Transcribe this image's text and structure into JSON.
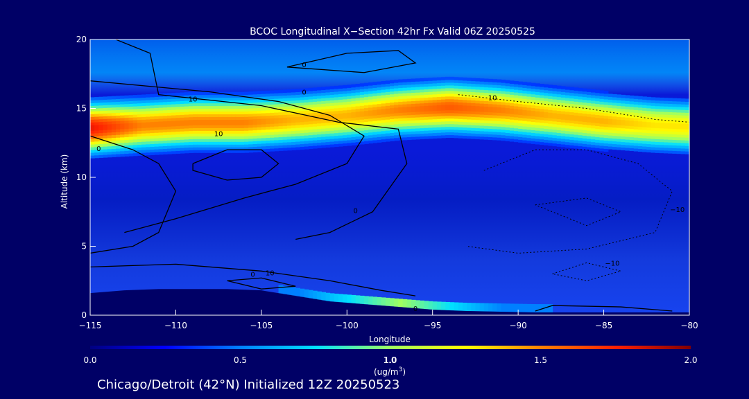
{
  "chart_data": {
    "type": "heatmap",
    "title": "BCOC Longitudinal X−Section 42hr  Fx Valid 06Z 20250525",
    "xlabel": "Longitude",
    "ylabel": "Altitude (km)",
    "xlim": [
      -115,
      -80
    ],
    "ylim": [
      0,
      20
    ],
    "x_ticks": [
      -115,
      -110,
      -105,
      -100,
      -95,
      -90,
      -85,
      -80
    ],
    "x_tick_labels": [
      "−115",
      "−110",
      "−105",
      "−100",
      "−95",
      "−90",
      "−85",
      "−80"
    ],
    "y_ticks": [
      0,
      5,
      10,
      15,
      20
    ],
    "y_tick_labels": [
      "0",
      "5",
      "10",
      "15",
      "20"
    ],
    "colorbar": {
      "label_prefix": "(ug/m",
      "label_sup": "3",
      "label_suffix": ")",
      "label_value": "1.0",
      "range": [
        0.0,
        2.0
      ],
      "ticks": [
        0.0,
        0.5,
        1.0,
        1.5,
        2.0
      ],
      "tick_labels": [
        "0.0",
        "0.5",
        "1.0",
        "1.5",
        "2.0"
      ],
      "colors": [
        "#000080",
        "#0000ff",
        "#0080ff",
        "#00e0ff",
        "#a0ff60",
        "#ffff00",
        "#ff8000",
        "#ff2000",
        "#800000"
      ]
    },
    "layer": {
      "description": "elevated smoke layer concentration peak altitude (km) by longitude",
      "longitudes": [
        -115,
        -112,
        -109,
        -106,
        -103,
        -100,
        -97,
        -94,
        -91,
        -88,
        -85,
        -82,
        -80
      ],
      "peak_altitude_km": [
        13.6,
        13.8,
        14.0,
        14.0,
        14.2,
        14.5,
        14.9,
        15.1,
        14.9,
        14.5,
        14.1,
        13.8,
        13.7
      ],
      "peak_value": [
        1.8,
        1.5,
        1.5,
        1.5,
        1.4,
        1.4,
        1.5,
        1.6,
        1.5,
        1.4,
        1.4,
        1.3,
        1.3
      ]
    },
    "terrain": {
      "longitudes": [
        -115,
        -113,
        -111,
        -109,
        -107,
        -105,
        -103,
        -101,
        -99,
        -97,
        -95,
        -93,
        -91,
        -89,
        -87,
        -85,
        -83,
        -80
      ],
      "surface_km": [
        1.6,
        1.8,
        1.9,
        1.9,
        1.9,
        1.8,
        1.4,
        1.0,
        0.8,
        0.6,
        0.4,
        0.3,
        0.25,
        0.2,
        0.2,
        0.2,
        0.2,
        0.2
      ]
    },
    "contour_labels": [
      "0",
      "0",
      "10",
      "0",
      "10",
      "0",
      "10",
      "0",
      "0",
      "10",
      "−10",
      "−10"
    ]
  },
  "footer": {
    "caption": "Chicago/Detroit (42°N) Initialized 12Z 20250523"
  }
}
